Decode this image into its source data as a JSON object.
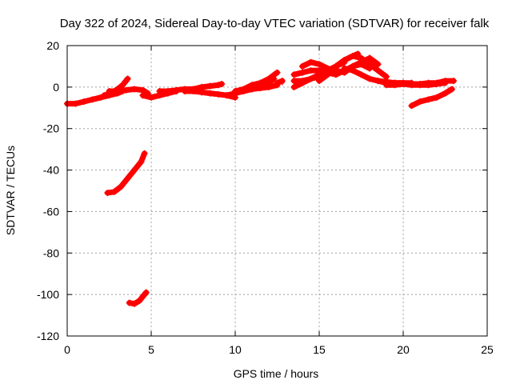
{
  "chart_data": {
    "type": "scatter",
    "title": "Day 322 of 2024, Sidereal Day-to-day VTEC variation (SDTVAR) for receiver falk",
    "xlabel": "GPS time / hours",
    "ylabel": "SDTVAR / TECUs",
    "xlim": [
      0,
      25
    ],
    "ylim": [
      -120,
      20
    ],
    "xticks": [
      0,
      5,
      10,
      15,
      20,
      25
    ],
    "yticks": [
      20,
      0,
      -20,
      -40,
      -60,
      -80,
      -100,
      -120
    ],
    "grid": true,
    "color": "#ff0000",
    "series": [
      {
        "x": [
          0,
          0.5,
          1,
          1.5,
          2,
          2.5,
          3,
          3.3
        ],
        "y": [
          -8,
          -8,
          -7,
          -6,
          -5,
          -4,
          -3,
          -2
        ]
      },
      {
        "x": [
          2.2,
          2.6,
          3.0,
          3.3,
          3.6
        ],
        "y": [
          -4,
          -3,
          -1,
          1,
          4
        ]
      },
      {
        "x": [
          2.5,
          3,
          3.5,
          4,
          4.5,
          4.8
        ],
        "y": [
          -2,
          -2,
          -1.5,
          -1,
          -1.5,
          -3
        ]
      },
      {
        "x": [
          4.5,
          5,
          5.5,
          6,
          6.5
        ],
        "y": [
          -4,
          -5,
          -4,
          -3,
          -2
        ]
      },
      {
        "x": [
          5.5,
          6,
          6.5,
          7,
          7.5,
          8,
          8.5,
          9,
          9.2
        ],
        "y": [
          -2,
          -2,
          -1.5,
          -1,
          -1,
          0,
          0.5,
          1,
          1.5
        ]
      },
      {
        "x": [
          7,
          7.5,
          8,
          8.5,
          9,
          9.5,
          10
        ],
        "y": [
          -2,
          -2,
          -2.5,
          -3,
          -3.5,
          -4,
          -5
        ]
      },
      {
        "x": [
          9.5,
          10,
          10.5,
          11,
          11.5,
          12,
          12.3
        ],
        "y": [
          -4,
          -3,
          -2,
          -1,
          0,
          2,
          4
        ]
      },
      {
        "x": [
          10,
          10.5,
          11,
          11.5,
          12,
          12.5
        ],
        "y": [
          -2,
          -1,
          1,
          2,
          4,
          7
        ]
      },
      {
        "x": [
          10.5,
          11,
          11.5,
          12,
          12.5
        ],
        "y": [
          -2,
          -1,
          -0.5,
          0,
          1
        ]
      },
      {
        "x": [
          12.5,
          12.8
        ],
        "y": [
          2,
          3
        ]
      },
      {
        "x": [
          13.5,
          14,
          14.5,
          15,
          15.5,
          16,
          16.5
        ],
        "y": [
          0,
          2,
          4,
          5,
          7,
          10,
          12
        ]
      },
      {
        "x": [
          13.5,
          14,
          14.5,
          15,
          15.5,
          16,
          16.5,
          17,
          17.5,
          18
        ],
        "y": [
          6,
          7,
          8,
          8,
          7,
          6,
          8,
          10,
          11,
          9
        ]
      },
      {
        "x": [
          13.5,
          14,
          14.5,
          15,
          15.5,
          16,
          16.5,
          17,
          17.3
        ],
        "y": [
          3,
          3,
          4,
          6,
          8,
          10,
          13,
          15,
          16
        ]
      },
      {
        "x": [
          14,
          14.5,
          15,
          15.5,
          16,
          16.5,
          17,
          17.5,
          18,
          18.5
        ],
        "y": [
          10,
          12,
          11,
          9,
          8,
          7,
          10,
          12,
          14,
          11
        ]
      },
      {
        "x": [
          15,
          15.5,
          16,
          16.5,
          17,
          17.5,
          18,
          18.5,
          19
        ],
        "y": [
          3,
          6,
          10,
          13,
          15,
          14,
          11,
          8,
          5
        ]
      },
      {
        "x": [
          16.5,
          17,
          17.5,
          18,
          18.5,
          19,
          19.5,
          20,
          20.5
        ],
        "y": [
          9,
          8,
          6,
          4,
          3,
          2,
          2,
          2,
          2
        ]
      },
      {
        "x": [
          18.5,
          19,
          19.5,
          20,
          20.5,
          21,
          21.5,
          22,
          22.5,
          23
        ],
        "y": [
          3,
          2.5,
          2,
          2,
          1.5,
          1.5,
          2,
          2,
          3,
          3
        ]
      },
      {
        "x": [
          19,
          19.5,
          20,
          20.5,
          21,
          21.5,
          22,
          22.5
        ],
        "y": [
          1,
          1,
          1.5,
          1,
          1,
          1,
          1.5,
          2
        ]
      },
      {
        "x": [
          20.5,
          21,
          21.5,
          22,
          22.5,
          22.9
        ],
        "y": [
          -9,
          -7,
          -6,
          -5,
          -3,
          -1
        ]
      },
      {
        "x": [
          2.4,
          2.8,
          3.2,
          3.6,
          4.0,
          4.4,
          4.6
        ],
        "y": [
          -51,
          -50.5,
          -48,
          -44,
          -40,
          -36,
          -32
        ]
      },
      {
        "x": [
          3.7,
          4.0,
          4.3,
          4.5,
          4.7
        ],
        "y": [
          -104,
          -104.5,
          -103,
          -101,
          -99
        ]
      }
    ],
    "markers": [
      {
        "x": 5.0,
        "y": -4.5,
        "symbol": "+"
      },
      {
        "x": 12.8,
        "y": 3.0,
        "symbol": "‡"
      }
    ]
  }
}
